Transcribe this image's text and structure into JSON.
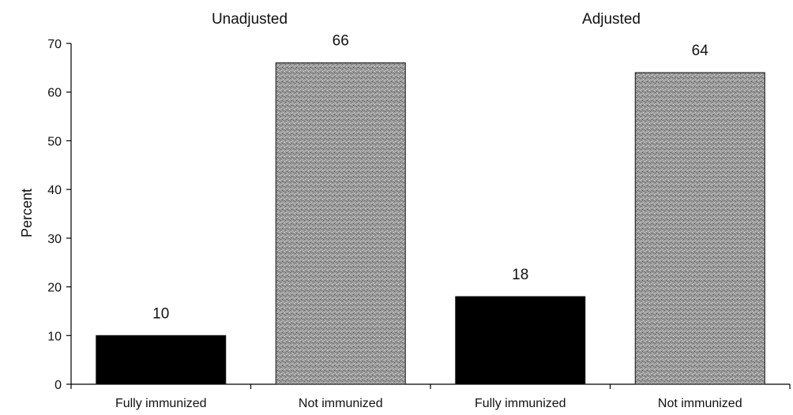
{
  "chart_data": {
    "type": "bar",
    "title": "",
    "xlabel": "",
    "ylabel": "Percent",
    "ylim": [
      0,
      70
    ],
    "yticks": [
      0,
      10,
      20,
      30,
      40,
      50,
      60,
      70
    ],
    "grid": false,
    "groups": [
      {
        "label": "Unadjusted",
        "categories": [
          "Fully immunized",
          "Not immunized"
        ],
        "values": [
          10,
          66
        ]
      },
      {
        "label": "Adjusted",
        "categories": [
          "Fully immunized",
          "Not immunized"
        ],
        "values": [
          18,
          64
        ]
      }
    ],
    "categories": [
      "Fully immunized",
      "Not immunized",
      "Fully immunized",
      "Not immunized"
    ],
    "values": [
      10,
      66,
      18,
      64
    ],
    "data_labels": [
      "10",
      "66",
      "18",
      "64"
    ],
    "bar_colors": [
      "#000000",
      "#9a9a9a",
      "#000000",
      "#9a9a9a"
    ]
  }
}
